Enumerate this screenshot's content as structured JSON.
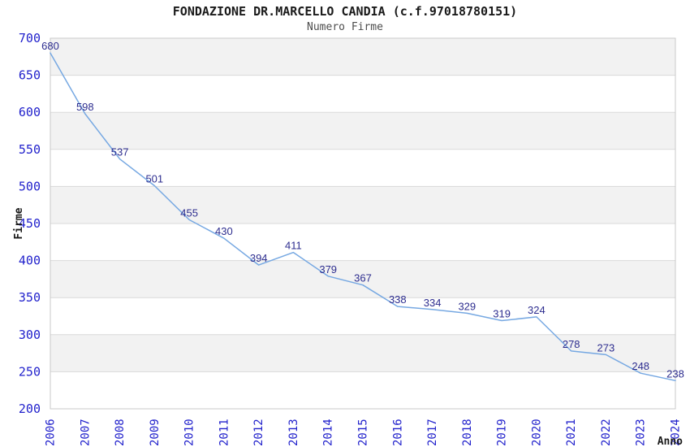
{
  "header": {
    "title": "FONDAZIONE DR.MARCELLO CANDIA (c.f.97018780151)",
    "subtitle": "Numero Firme"
  },
  "chart_data": {
    "type": "line",
    "title": "FONDAZIONE DR.MARCELLO CANDIA (c.f.97018780151)",
    "subtitle": "Numero Firme",
    "xlabel": "Anno",
    "ylabel": "Firme",
    "categories": [
      "2006",
      "2007",
      "2008",
      "2009",
      "2010",
      "2011",
      "2012",
      "2013",
      "2014",
      "2015",
      "2016",
      "2017",
      "2018",
      "2019",
      "2020",
      "2021",
      "2022",
      "2023",
      "2024"
    ],
    "values": [
      680,
      598,
      537,
      501,
      455,
      430,
      394,
      411,
      379,
      367,
      338,
      334,
      329,
      319,
      324,
      278,
      273,
      248,
      238
    ],
    "ylim": [
      200,
      700
    ],
    "ytick_step": 50,
    "grid": true,
    "legend_position": "none",
    "point_labels": true,
    "band_pattern": "alternating-gray-white-from-top"
  },
  "colors": {
    "line": "#76a8e2",
    "point_label": "#2d2d8f",
    "tick_label": "#2222cc",
    "axis_title": "#1a1a1a",
    "title": "#1a1a1a",
    "subtitle": "#4d4d4d",
    "band_gray": "#f2f2f2",
    "band_white": "#ffffff",
    "gridline": "#d9d9d9",
    "plot_border": "#c9c9c9",
    "background": "#ffffff"
  }
}
